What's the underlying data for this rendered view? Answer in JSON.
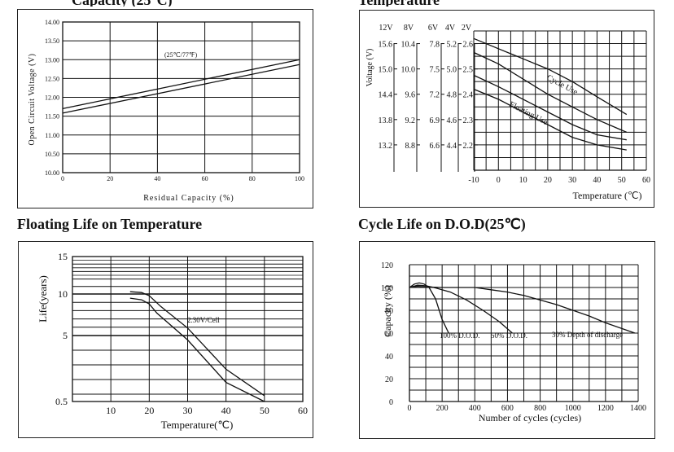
{
  "headings": {
    "top_left_cut": "Capacity (25°C)",
    "top_right_cut": "Temperature",
    "floating_life": "Floating Life on Temperature",
    "cycle_life": "Cycle Life on D.O.D(25℃)"
  },
  "chart_data": [
    {
      "id": "ocv",
      "type": "line",
      "xlabel": "Residual Capacity (%)",
      "ylabel": "Open Circuit Voltage (V)",
      "xlim": [
        0,
        100
      ],
      "ylim": [
        10.0,
        14.0
      ],
      "x_ticks": [
        "0",
        "20",
        "40",
        "60",
        "80",
        "100"
      ],
      "y_ticks": [
        "10.00",
        "10.50",
        "11.00",
        "11.50",
        "12.00",
        "12.50",
        "13.00",
        "13.50",
        "14.00"
      ],
      "grid": true,
      "annotation": "(25℃/77℉)",
      "series": [
        {
          "x": [
            0,
            100
          ],
          "y": [
            11.7,
            13.0
          ]
        },
        {
          "x": [
            0,
            100
          ],
          "y": [
            11.58,
            12.87
          ]
        }
      ]
    },
    {
      "id": "charge_voltage",
      "type": "line",
      "xlabel": "Temperature (℃)",
      "ylabel": "Voltage (V)",
      "xlim": [
        -10,
        60
      ],
      "ylim": [
        2.1,
        2.65
      ],
      "x_ticks": [
        "-10",
        "0",
        "10",
        "20",
        "30",
        "40",
        "50",
        "60"
      ],
      "grid": true,
      "voltage_columns": [
        {
          "header": "12V",
          "values": [
            "15.6",
            "15.0",
            "14.4",
            "13.8",
            "13.2"
          ]
        },
        {
          "header": "8V",
          "values": [
            "10.4",
            "10.0",
            "9.6",
            "9.2",
            "8.8"
          ]
        },
        {
          "header": "6V",
          "values": [
            "7.8",
            "7.5",
            "7.2",
            "6.9",
            "6.6"
          ]
        },
        {
          "header": "4V",
          "values": [
            "5.2",
            "5.0",
            "4.8",
            "4.6",
            "4.4"
          ]
        },
        {
          "header": "2V",
          "values": [
            "2.6",
            "2.5",
            "2.4",
            "2.3",
            "2.2"
          ]
        }
      ],
      "series": [
        {
          "name": "Cycle Use",
          "band": "upper",
          "x": [
            -10,
            0,
            10,
            20,
            30,
            40,
            52
          ],
          "y": [
            2.62,
            2.58,
            2.54,
            2.5,
            2.45,
            2.39,
            2.32
          ]
        },
        {
          "name": "Cycle Use",
          "band": "lower",
          "x": [
            -10,
            0,
            10,
            20,
            30,
            40,
            52
          ],
          "y": [
            2.565,
            2.52,
            2.46,
            2.4,
            2.35,
            2.3,
            2.25
          ]
        },
        {
          "name": "Floating Use",
          "band": "upper",
          "x": [
            -10,
            0,
            10,
            20,
            30,
            40,
            52
          ],
          "y": [
            2.475,
            2.43,
            2.38,
            2.33,
            2.28,
            2.24,
            2.22
          ]
        },
        {
          "name": "Floating Use",
          "band": "lower",
          "x": [
            -10,
            0,
            10,
            20,
            30,
            40,
            52
          ],
          "y": [
            2.42,
            2.38,
            2.33,
            2.28,
            2.23,
            2.2,
            2.18
          ]
        }
      ]
    },
    {
      "id": "floating_life",
      "type": "line",
      "xlabel": "Temperature(℃)",
      "ylabel": "Life(years)",
      "xlim": [
        0,
        60
      ],
      "ylim": [
        0.5,
        15
      ],
      "x_ticks": [
        "10",
        "20",
        "30",
        "40",
        "50",
        "60"
      ],
      "y_ticks": [
        "0.5",
        "5",
        "10",
        "15"
      ],
      "grid": true,
      "annotation": "2.30V/Cell",
      "series": [
        {
          "x": [
            15,
            18,
            20,
            23,
            30,
            40,
            50
          ],
          "y": [
            10.3,
            10.2,
            9.8,
            8.5,
            5.9,
            2.7,
            0.9
          ]
        },
        {
          "x": [
            15,
            18,
            20,
            22,
            30,
            40,
            50
          ],
          "y": [
            9.5,
            9.3,
            8.8,
            7.7,
            4.7,
            1.8,
            0.5
          ]
        }
      ]
    },
    {
      "id": "cycle_life",
      "type": "line",
      "xlabel": "Number of cycles (cycles)",
      "ylabel": "Capacity (%)",
      "xlim": [
        0,
        1400
      ],
      "ylim": [
        0,
        120
      ],
      "x_ticks": [
        "0",
        "200",
        "400",
        "600",
        "800",
        "1000",
        "1200",
        "1400"
      ],
      "y_ticks": [
        "0",
        "20",
        "40",
        "60",
        "80",
        "100",
        "120"
      ],
      "grid": true,
      "series": [
        {
          "name": "100% D.O.D.",
          "x": [
            0,
            30,
            60,
            90,
            120,
            160,
            200,
            240
          ],
          "y": [
            100,
            103,
            104,
            103,
            100,
            90,
            72,
            60
          ]
        },
        {
          "name": "50% D.O.D.",
          "x": [
            0,
            50,
            100,
            150,
            250,
            350,
            450,
            550,
            630
          ],
          "y": [
            100,
            102,
            101.5,
            100,
            96,
            89,
            80,
            70,
            60
          ]
        },
        {
          "name": "30% Depth of discharge",
          "x": [
            0,
            50,
            100,
            200,
            300,
            400,
            500,
            600,
            700,
            800,
            900,
            1000,
            1100,
            1200,
            1300,
            1380
          ],
          "y": [
            100,
            101,
            100.5,
            100,
            100,
            100,
            98,
            96,
            93,
            89,
            85,
            80,
            75,
            69,
            64,
            60
          ]
        }
      ]
    }
  ]
}
